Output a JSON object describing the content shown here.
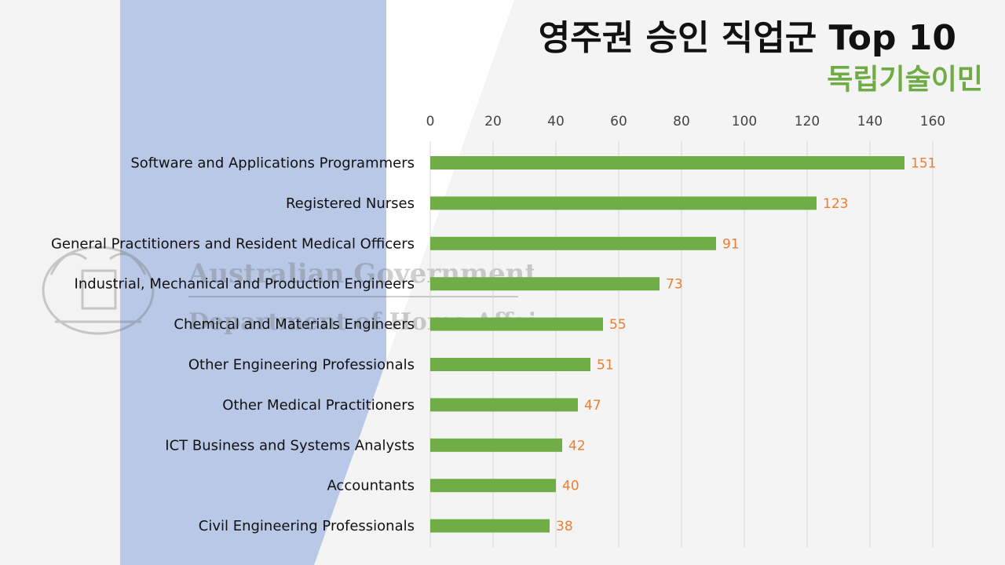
{
  "header": {
    "title": "영주권 승인 직업군 Top 10",
    "subtitle": "독립기술이민"
  },
  "watermark": {
    "line1": "Australian Government",
    "line2": "Department of Home Affairs"
  },
  "colors": {
    "bar": "#70ad47",
    "value_label": "#ed7d31",
    "subtitle": "#6fac46",
    "blue_band": "#b9c8e7"
  },
  "chart_data": {
    "type": "bar",
    "orientation": "horizontal",
    "title": "영주권 승인 직업군 Top 10",
    "subtitle": "독립기술이민",
    "xaxis_position": "top",
    "grid": true,
    "xlim": [
      0,
      160
    ],
    "ticks": [
      0,
      20,
      40,
      60,
      80,
      100,
      120,
      140,
      160
    ],
    "categories": [
      "Software and Applications Programmers",
      "Registered Nurses",
      "General Practitioners and Resident Medical Officers",
      "Industrial, Mechanical and Production Engineers",
      "Chemical and Materials Engineers",
      "Other Engineering Professionals",
      "Other Medical Practitioners",
      "ICT Business and Systems Analysts",
      "Accountants",
      "Civil Engineering Professionals"
    ],
    "values": [
      151,
      123,
      91,
      73,
      55,
      51,
      47,
      42,
      40,
      38
    ]
  }
}
